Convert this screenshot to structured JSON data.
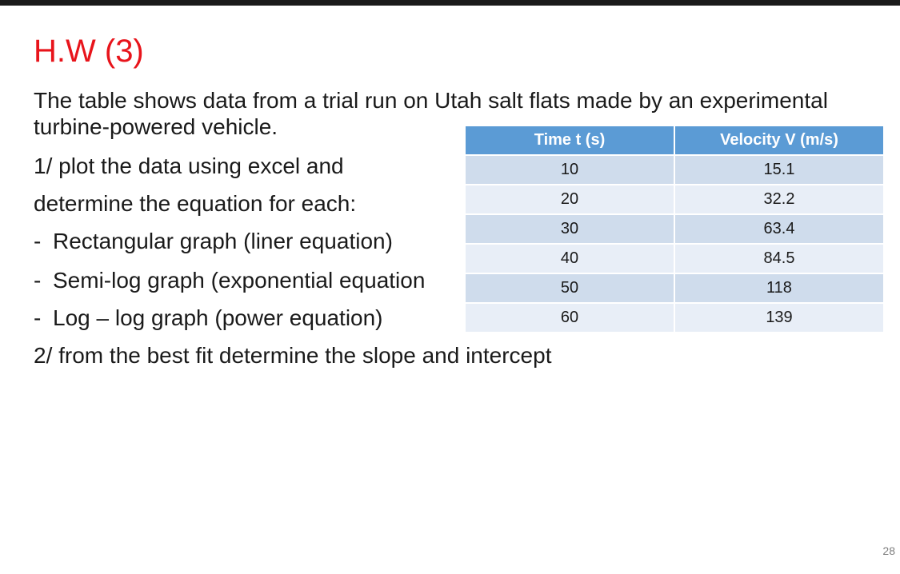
{
  "slide": {
    "title": "H.W (3)",
    "intro_line1": "The table shows data from a trial run on Utah salt flats made by an experimental",
    "intro_line2": "turbine-powered vehicle.",
    "task1_line1": "1/ plot the data using excel and",
    "task1_line2": "determine the equation for each:",
    "bullets": [
      {
        "dash": "-",
        "text": "Rectangular graph (liner equation)"
      },
      {
        "dash": "-",
        "text": "Semi-log graph (exponential equation"
      },
      {
        "dash": "-",
        "text": "Log – log graph (power equation)"
      }
    ],
    "task2": "2/ from the best fit determine the slope and intercept",
    "page_number": "28"
  },
  "table": {
    "headers": [
      "Time t  (s)",
      "Velocity V (m/s)"
    ],
    "rows": [
      [
        "10",
        "15.1"
      ],
      [
        "20",
        "32.2"
      ],
      [
        "30",
        "63.4"
      ],
      [
        "40",
        "84.5"
      ],
      [
        "50",
        "118"
      ],
      [
        "60",
        "139"
      ]
    ]
  },
  "colors": {
    "title": "#e8141b",
    "header_bg": "#5b9bd5",
    "row_dark": "#cfdcec",
    "row_light": "#e8eef7"
  }
}
